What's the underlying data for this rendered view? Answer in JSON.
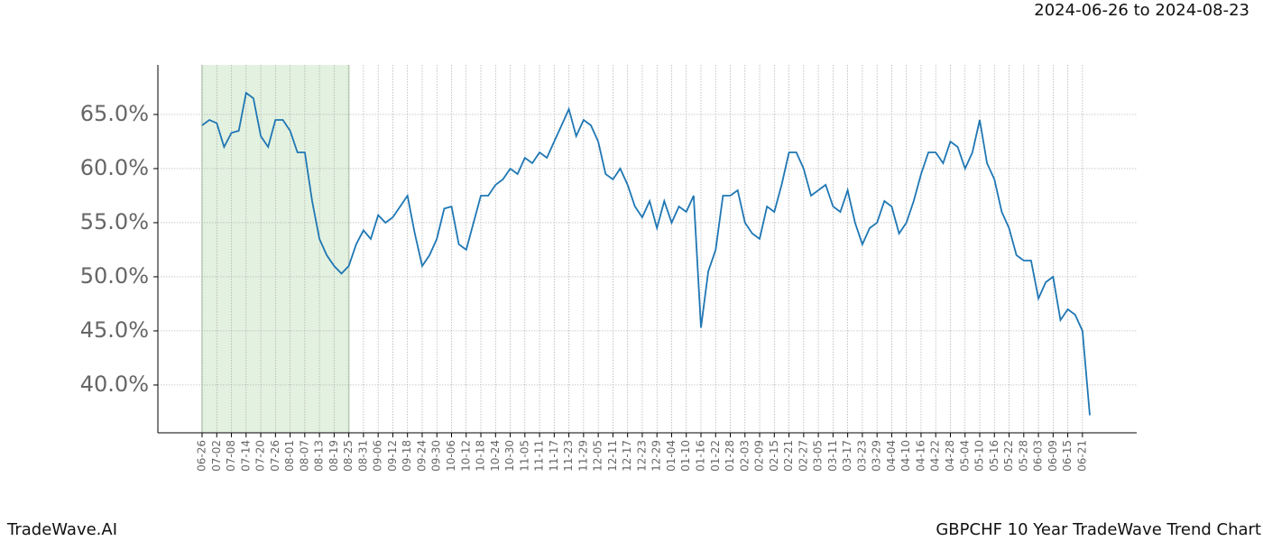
{
  "chart_data": {
    "type": "line",
    "title": "GBPCHF 10 Year TradeWave Trend Chart",
    "date_range": "2024-06-26 to 2024-08-23",
    "brand": "TradeWave.AI",
    "categories": [
      "06-26",
      null,
      "07-02",
      null,
      "07-08",
      null,
      "07-14",
      null,
      "07-20",
      null,
      "07-26",
      null,
      "08-01",
      null,
      "08-07",
      null,
      "08-13",
      null,
      "08-19",
      null,
      "08-25",
      null,
      "08-31",
      null,
      "09-06",
      null,
      "09-12",
      null,
      "09-18",
      null,
      "09-24",
      null,
      "09-30",
      null,
      "10-06",
      null,
      "10-12",
      null,
      "10-18",
      null,
      "10-24",
      null,
      "10-30",
      null,
      "11-05",
      null,
      "11-11",
      null,
      "11-17",
      null,
      "11-23",
      null,
      "11-29",
      null,
      "12-05",
      null,
      "12-11",
      null,
      "12-17",
      null,
      "12-23",
      null,
      "12-29",
      null,
      "01-04",
      null,
      "01-10",
      null,
      "01-16",
      null,
      "01-22",
      null,
      "01-28",
      null,
      "02-03",
      null,
      "02-09",
      null,
      "02-15",
      null,
      "02-21",
      null,
      "02-27",
      null,
      "03-05",
      null,
      "03-11",
      null,
      "03-17",
      null,
      "03-23",
      null,
      "03-29",
      null,
      "04-04",
      null,
      "04-10",
      null,
      "04-16",
      null,
      "04-22",
      null,
      "04-28",
      null,
      "05-04",
      null,
      "05-10",
      null,
      "05-16",
      null,
      "05-22",
      null,
      "05-28",
      null,
      "06-03",
      null,
      "06-09",
      null,
      "06-15",
      null,
      "06-21",
      null
    ],
    "series": [
      {
        "color": "#1f77b4",
        "values": [
          64.0,
          64.5,
          64.2,
          62.0,
          63.3,
          63.5,
          67.0,
          66.5,
          63.0,
          62.0,
          64.5,
          64.5,
          63.5,
          61.5,
          61.5,
          57.0,
          53.5,
          52.0,
          51.0,
          50.3,
          51.0,
          53.0,
          54.3,
          53.5,
          55.7,
          55.0,
          55.5,
          56.5,
          57.5,
          54.0,
          51.0,
          52.0,
          53.5,
          56.3,
          56.5,
          53.0,
          52.5,
          55.0,
          57.5,
          57.5,
          58.5,
          59.0,
          60.0,
          59.5,
          61.0,
          60.5,
          61.5,
          61.0,
          62.5,
          64.0,
          65.5,
          63.0,
          64.5,
          64.0,
          62.5,
          59.5,
          59.0,
          60.0,
          58.5,
          56.5,
          55.5,
          57.0,
          54.5,
          57.0,
          55.0,
          56.5,
          56.0,
          57.5,
          45.3,
          50.5,
          52.5,
          57.5,
          57.5,
          58.0,
          55.0,
          54.0,
          53.5,
          56.5,
          56.0,
          58.5,
          61.5,
          61.5,
          60.0,
          57.5,
          58.0,
          58.5,
          56.5,
          56.0,
          58.0,
          55.0,
          53.0,
          54.5,
          55.0,
          57.0,
          56.5,
          54.0,
          55.0,
          57.0,
          59.5,
          61.5,
          61.5,
          60.5,
          62.5,
          62.0,
          60.0,
          61.5,
          64.5,
          60.5,
          59.0,
          56.0,
          54.5,
          52.0,
          51.5,
          51.5,
          48.0,
          49.5,
          50.0,
          46.0,
          47.0,
          46.5,
          45.0,
          37.2
        ]
      }
    ],
    "highlight_range": [
      "06-26",
      "08-25"
    ],
    "highlight_color": "#e3f1e0",
    "ylim": [
      35.58,
      69.58
    ],
    "yticks": [
      {
        "value": 40,
        "label": "40.0%"
      },
      {
        "value": 45,
        "label": "45.0%"
      },
      {
        "value": 50,
        "label": "50.0%"
      },
      {
        "value": 55,
        "label": "55.0%"
      },
      {
        "value": 60,
        "label": "60.0%"
      },
      {
        "value": 65,
        "label": "65.0%"
      }
    ],
    "grid": true
  }
}
